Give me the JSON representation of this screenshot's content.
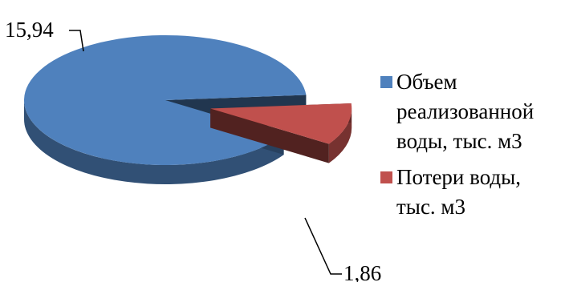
{
  "chart_data": {
    "type": "pie",
    "style": "3d-exploded",
    "title": "",
    "series": [
      {
        "name": "Объем реализованной воды, тыс. м3",
        "value": 15.94,
        "label": "15,94",
        "color": "#4F81BD"
      },
      {
        "name": "Потери воды, тыс. м3",
        "value": 1.86,
        "label": "1,86",
        "color": "#C0504D"
      }
    ],
    "legend": {
      "position": "right",
      "entries": [
        {
          "lines": [
            "Объем",
            "реализованной",
            "воды, тыс. м3"
          ],
          "color": "#4F81BD"
        },
        {
          "lines": [
            "Потери воды,",
            "тыс. м3"
          ],
          "color": "#C0504D"
        }
      ]
    }
  }
}
